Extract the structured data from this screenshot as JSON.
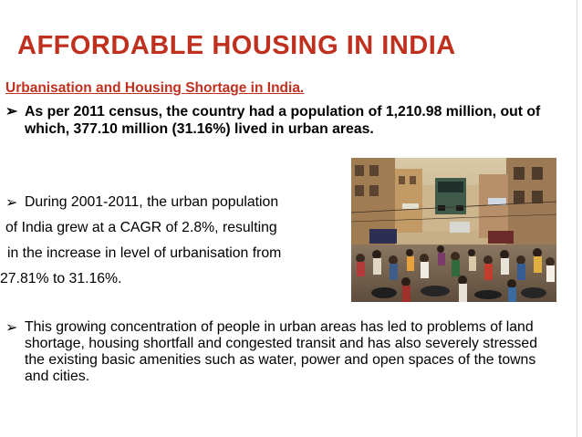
{
  "title": "AFFORDABLE HOUSING IN INDIA",
  "subtitle": "Urbanisation and Housing Shortage in India.",
  "bullets": [
    {
      "marker": "➢",
      "text": "As per 2011 census, the country had a population of 1,210.98 million, out of which, 377.10 million (31.16%) lived in urban areas."
    },
    {
      "marker": "➢",
      "lines": [
        "During 2001-2011, the urban population",
        "of India grew at a CAGR of 2.8%, resulting",
        "in the increase in level of urbanisation from",
        "27.81% to 31.16%."
      ]
    },
    {
      "marker": "➢",
      "text": "This growing concentration of people in urban areas has led to problems of land shortage, housing shortfall and congested transit and has also severely stressed the existing basic amenities such as water, power and open spaces of the towns and cities."
    }
  ],
  "colors": {
    "title": "#c0301e",
    "subtitle": "#c0301e",
    "body_text": "#000000",
    "background": "#ffffff"
  },
  "photo": {
    "icon": "crowded-street-photo"
  }
}
